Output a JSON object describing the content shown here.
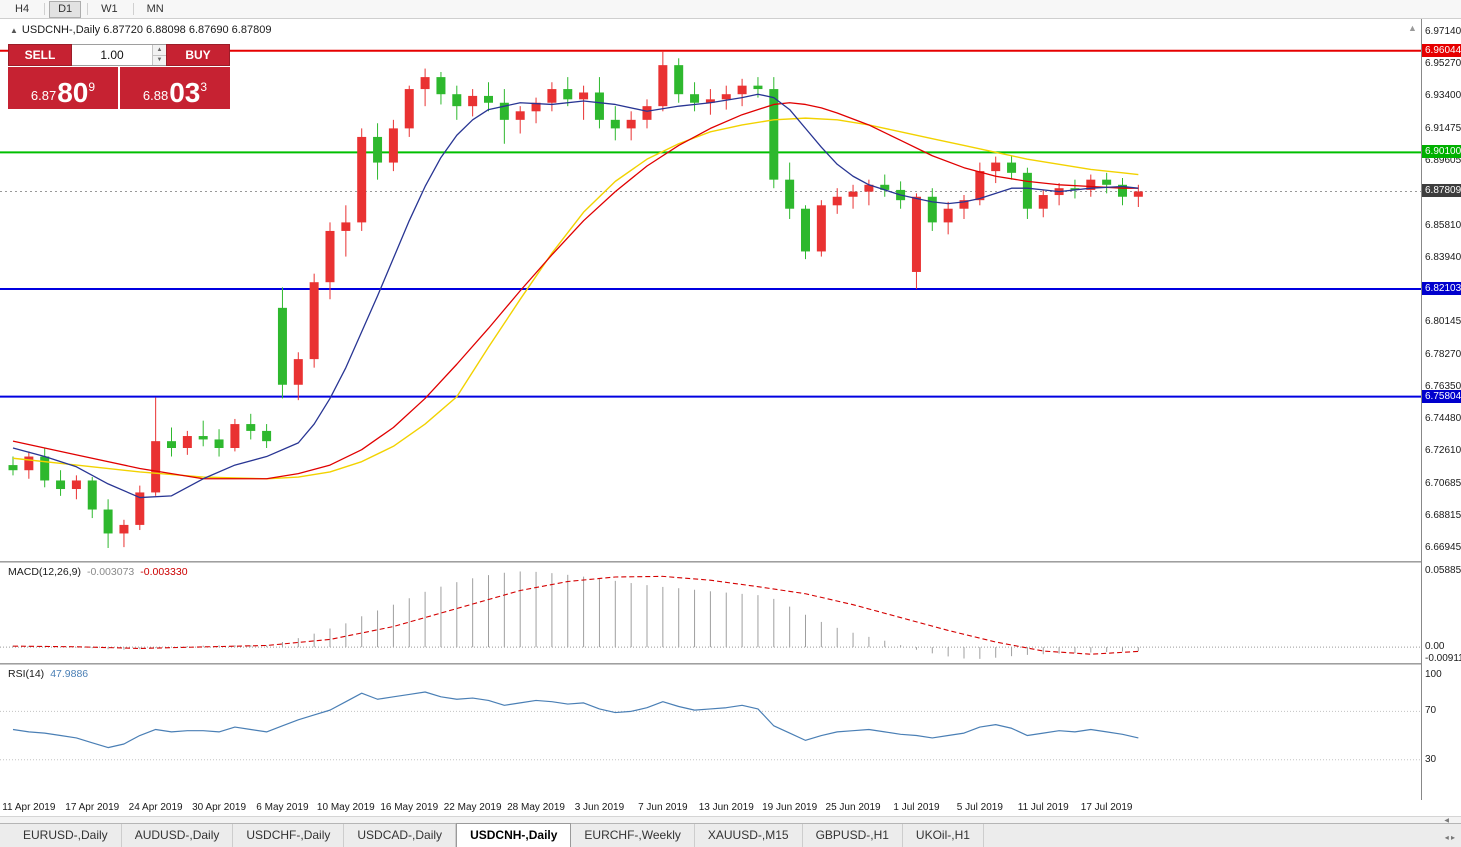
{
  "colors": {
    "candle_up": "#e93232",
    "candle_down": "#2eb82e",
    "ma_blue": "#283593",
    "ma_red": "#e00000",
    "ma_yellow": "#f2d200",
    "level_red": "#e60000",
    "level_green": "#00bf00",
    "level_blue": "#0000e0",
    "current_box": "#3d3d3d",
    "macd_hist": "#9f9f9f",
    "macd_signal": "#d40000",
    "rsi_line": "#4a7fb5",
    "trade_red": "#c62232"
  },
  "toolbar": {
    "timeframes": [
      "H4",
      "D1",
      "W1",
      "MN"
    ],
    "active": "D1"
  },
  "chart": {
    "title_symbol": "USDCNH-,Daily",
    "title_quote": "6.87720 6.88098 6.87690 6.87809",
    "collapse_icon": "▲",
    "shift_marker": "▲"
  },
  "trade": {
    "sell": "SELL",
    "buy": "BUY",
    "volume": "1.00",
    "bid_prefix": "6.87",
    "bid_big": "80",
    "bid_sup": "9",
    "ask_prefix": "6.88",
    "ask_big": "03",
    "ask_sup": "3"
  },
  "price_axis": {
    "ticks": [
      {
        "p": 6.9714,
        "t": "6.97140"
      },
      {
        "p": 6.9527,
        "t": "6.95270"
      },
      {
        "p": 6.934,
        "t": "6.93400"
      },
      {
        "p": 6.91475,
        "t": "6.91475"
      },
      {
        "p": 6.89605,
        "t": "6.89605"
      },
      {
        "p": 6.8581,
        "t": "6.85810"
      },
      {
        "p": 6.8394,
        "t": "6.83940"
      },
      {
        "p": 6.80145,
        "t": "6.80145"
      },
      {
        "p": 6.7827,
        "t": "6.78270"
      },
      {
        "p": 6.7635,
        "t": "6.76350"
      },
      {
        "p": 6.7448,
        "t": "6.74480"
      },
      {
        "p": 6.7261,
        "t": "6.72610"
      },
      {
        "p": 6.70685,
        "t": "6.70685"
      },
      {
        "p": 6.68815,
        "t": "6.68815"
      },
      {
        "p": 6.66945,
        "t": "6.66945"
      }
    ],
    "boxes": [
      {
        "p": 6.96044,
        "t": "6.96044",
        "c": "#e60000"
      },
      {
        "p": 6.901,
        "t": "6.90100",
        "c": "#00b000"
      },
      {
        "p": 6.87809,
        "t": "6.87809",
        "c": "#3d3d3d"
      },
      {
        "p": 6.82103,
        "t": "6.82103",
        "c": "#0000cd"
      },
      {
        "p": 6.75804,
        "t": "6.75804",
        "c": "#0000cd"
      }
    ]
  },
  "chart_data": {
    "type": "candlestick",
    "symbol": "USDCNH",
    "timeframe": "Daily",
    "ylim": [
      6.6613,
      6.979
    ],
    "levels": [
      {
        "p": 6.96044,
        "color": "#e60000",
        "w": 2
      },
      {
        "p": 6.901,
        "color": "#00bf00",
        "w": 2
      },
      {
        "p": 6.82103,
        "color": "#0000e0",
        "w": 2
      },
      {
        "p": 6.75804,
        "color": "#0000e0",
        "w": 2
      }
    ],
    "current_price": 6.87809,
    "candles": [
      [
        6.718,
        6.723,
        6.712,
        6.715
      ],
      [
        6.715,
        6.726,
        6.71,
        6.723
      ],
      [
        6.723,
        6.728,
        6.705,
        6.709
      ],
      [
        6.709,
        6.715,
        6.7,
        6.704
      ],
      [
        6.704,
        6.712,
        6.698,
        6.709
      ],
      [
        6.709,
        6.711,
        6.687,
        6.692
      ],
      [
        6.692,
        6.698,
        6.6695,
        6.678
      ],
      [
        6.678,
        6.686,
        6.67,
        6.683
      ],
      [
        6.683,
        6.706,
        6.68,
        6.702
      ],
      [
        6.702,
        6.7575,
        6.7,
        6.732
      ],
      [
        6.732,
        6.74,
        6.723,
        6.728
      ],
      [
        6.728,
        6.738,
        6.724,
        6.735
      ],
      [
        6.735,
        6.744,
        6.729,
        6.733
      ],
      [
        6.733,
        6.739,
        6.723,
        6.728
      ],
      [
        6.728,
        6.745,
        6.726,
        6.742
      ],
      [
        6.742,
        6.748,
        6.733,
        6.738
      ],
      [
        6.738,
        6.742,
        6.728,
        6.732
      ],
      [
        6.81,
        6.822,
        6.757,
        6.765
      ],
      [
        6.765,
        6.784,
        6.756,
        6.78
      ],
      [
        6.78,
        6.83,
        6.775,
        6.825
      ],
      [
        6.825,
        6.86,
        6.815,
        6.855
      ],
      [
        6.855,
        6.87,
        6.84,
        6.86
      ],
      [
        6.86,
        6.915,
        6.855,
        6.91
      ],
      [
        6.91,
        6.918,
        6.885,
        6.895
      ],
      [
        6.895,
        6.92,
        6.89,
        6.915
      ],
      [
        6.915,
        6.94,
        6.91,
        6.938
      ],
      [
        6.938,
        6.95,
        6.928,
        6.945
      ],
      [
        6.945,
        6.948,
        6.929,
        6.935
      ],
      [
        6.935,
        6.94,
        6.92,
        6.928
      ],
      [
        6.928,
        6.938,
        6.922,
        6.934
      ],
      [
        6.934,
        6.942,
        6.925,
        6.93
      ],
      [
        6.93,
        6.938,
        6.906,
        6.92
      ],
      [
        6.92,
        6.928,
        6.912,
        6.925
      ],
      [
        6.925,
        6.933,
        6.918,
        6.93
      ],
      [
        6.93,
        6.942,
        6.925,
        6.938
      ],
      [
        6.938,
        6.945,
        6.928,
        6.932
      ],
      [
        6.932,
        6.94,
        6.92,
        6.936
      ],
      [
        6.936,
        6.945,
        6.915,
        6.92
      ],
      [
        6.92,
        6.928,
        6.908,
        6.915
      ],
      [
        6.915,
        6.925,
        6.908,
        6.92
      ],
      [
        6.92,
        6.932,
        6.915,
        6.928
      ],
      [
        6.928,
        6.9604,
        6.925,
        6.952
      ],
      [
        6.952,
        6.956,
        6.93,
        6.935
      ],
      [
        6.935,
        6.942,
        6.925,
        6.93
      ],
      [
        6.93,
        6.938,
        6.923,
        6.932
      ],
      [
        6.932,
        6.94,
        6.926,
        6.935
      ],
      [
        6.935,
        6.944,
        6.928,
        6.94
      ],
      [
        6.94,
        6.945,
        6.933,
        6.938
      ],
      [
        6.938,
        6.945,
        6.88,
        6.885
      ],
      [
        6.885,
        6.895,
        6.862,
        6.868
      ],
      [
        6.868,
        6.87,
        6.8385,
        6.843
      ],
      [
        6.843,
        6.873,
        6.84,
        6.87
      ],
      [
        6.87,
        6.88,
        6.865,
        6.875
      ],
      [
        6.875,
        6.882,
        6.868,
        6.878
      ],
      [
        6.878,
        6.885,
        6.87,
        6.882
      ],
      [
        6.882,
        6.888,
        6.875,
        6.879
      ],
      [
        6.879,
        6.884,
        6.868,
        6.873
      ],
      [
        6.831,
        6.877,
        6.821,
        6.875
      ],
      [
        6.875,
        6.88,
        6.855,
        6.86
      ],
      [
        6.86,
        6.872,
        6.853,
        6.868
      ],
      [
        6.868,
        6.876,
        6.862,
        6.873
      ],
      [
        6.873,
        6.895,
        6.87,
        6.89
      ],
      [
        6.89,
        6.8985,
        6.883,
        6.895
      ],
      [
        6.895,
        6.899,
        6.885,
        6.889
      ],
      [
        6.889,
        6.892,
        6.862,
        6.868
      ],
      [
        6.868,
        6.879,
        6.863,
        6.876
      ],
      [
        6.876,
        6.883,
        6.87,
        6.88
      ],
      [
        6.88,
        6.885,
        6.874,
        6.879
      ],
      [
        6.879,
        6.888,
        6.875,
        6.885
      ],
      [
        6.885,
        6.889,
        6.877,
        6.882
      ],
      [
        6.882,
        6.886,
        6.87,
        6.875
      ],
      [
        6.875,
        6.882,
        6.869,
        6.8781
      ]
    ],
    "ma": {
      "blue": [
        [
          0,
          6.728
        ],
        [
          2,
          6.723
        ],
        [
          4,
          6.717
        ],
        [
          6,
          6.707
        ],
        [
          8,
          6.699
        ],
        [
          10,
          6.7
        ],
        [
          12,
          6.71
        ],
        [
          14,
          6.718
        ],
        [
          16,
          6.723
        ],
        [
          18,
          6.731
        ],
        [
          19,
          6.742
        ],
        [
          20,
          6.757
        ],
        [
          21,
          6.775
        ],
        [
          22,
          6.796
        ],
        [
          23,
          6.817
        ],
        [
          24,
          6.839
        ],
        [
          25,
          6.861
        ],
        [
          26,
          6.881
        ],
        [
          27,
          6.898
        ],
        [
          28,
          6.911
        ],
        [
          29,
          6.92
        ],
        [
          30,
          6.926
        ],
        [
          32,
          6.93
        ],
        [
          34,
          6.929
        ],
        [
          36,
          6.931
        ],
        [
          38,
          6.929
        ],
        [
          40,
          6.925
        ],
        [
          42,
          6.928
        ],
        [
          44,
          6.93
        ],
        [
          46,
          6.933
        ],
        [
          47,
          6.935
        ],
        [
          48,
          6.933
        ],
        [
          49,
          6.926
        ],
        [
          50,
          6.915
        ],
        [
          51,
          6.904
        ],
        [
          52,
          6.894
        ],
        [
          53,
          6.887
        ],
        [
          54,
          6.882
        ],
        [
          55,
          6.879
        ],
        [
          56,
          6.876
        ],
        [
          57,
          6.874
        ],
        [
          58,
          6.872
        ],
        [
          59,
          6.871
        ],
        [
          60,
          6.872
        ],
        [
          61,
          6.874
        ],
        [
          62,
          6.877
        ],
        [
          63,
          6.88
        ],
        [
          64,
          6.88
        ],
        [
          65,
          6.879
        ],
        [
          66,
          6.878
        ],
        [
          68,
          6.88
        ],
        [
          70,
          6.881
        ],
        [
          71,
          6.88
        ]
      ],
      "red": [
        [
          0,
          6.732
        ],
        [
          4,
          6.724
        ],
        [
          8,
          6.716
        ],
        [
          12,
          6.71
        ],
        [
          16,
          6.71
        ],
        [
          18,
          6.713
        ],
        [
          20,
          6.718
        ],
        [
          22,
          6.727
        ],
        [
          24,
          6.74
        ],
        [
          26,
          6.757
        ],
        [
          28,
          6.777
        ],
        [
          30,
          6.798
        ],
        [
          32,
          6.82
        ],
        [
          34,
          6.841
        ],
        [
          36,
          6.861
        ],
        [
          38,
          6.878
        ],
        [
          40,
          6.893
        ],
        [
          42,
          6.905
        ],
        [
          44,
          6.915
        ],
        [
          46,
          6.923
        ],
        [
          48,
          6.929
        ],
        [
          49,
          6.93
        ],
        [
          50,
          6.929
        ],
        [
          51,
          6.927
        ],
        [
          52,
          6.924
        ],
        [
          54,
          6.917
        ],
        [
          56,
          6.908
        ],
        [
          58,
          6.899
        ],
        [
          60,
          6.892
        ],
        [
          62,
          6.887
        ],
        [
          64,
          6.884
        ],
        [
          66,
          6.882
        ],
        [
          68,
          6.881
        ],
        [
          70,
          6.88
        ],
        [
          71,
          6.88
        ]
      ],
      "yellow": [
        [
          0,
          6.722
        ],
        [
          4,
          6.718
        ],
        [
          8,
          6.714
        ],
        [
          12,
          6.711
        ],
        [
          16,
          6.71
        ],
        [
          18,
          6.711
        ],
        [
          20,
          6.714
        ],
        [
          22,
          6.72
        ],
        [
          24,
          6.729
        ],
        [
          26,
          6.742
        ],
        [
          28,
          6.758
        ],
        [
          30,
          6.787
        ],
        [
          32,
          6.815
        ],
        [
          34,
          6.842
        ],
        [
          36,
          6.866
        ],
        [
          38,
          6.884
        ],
        [
          40,
          6.897
        ],
        [
          42,
          6.906
        ],
        [
          44,
          6.913
        ],
        [
          46,
          6.917
        ],
        [
          48,
          6.92
        ],
        [
          50,
          6.921
        ],
        [
          52,
          6.92
        ],
        [
          54,
          6.917
        ],
        [
          56,
          6.913
        ],
        [
          58,
          6.909
        ],
        [
          60,
          6.905
        ],
        [
          62,
          6.901
        ],
        [
          64,
          6.897
        ],
        [
          66,
          6.894
        ],
        [
          68,
          6.891
        ],
        [
          70,
          6.889
        ],
        [
          71,
          6.888
        ]
      ]
    },
    "x_labels": [
      {
        "i": 1,
        "t": "11 Apr 2019"
      },
      {
        "i": 5,
        "t": "17 Apr 2019"
      },
      {
        "i": 9,
        "t": "24 Apr 2019"
      },
      {
        "i": 13,
        "t": "30 Apr 2019"
      },
      {
        "i": 17,
        "t": "6 May 2019"
      },
      {
        "i": 21,
        "t": "10 May 2019"
      },
      {
        "i": 25,
        "t": "16 May 2019"
      },
      {
        "i": 29,
        "t": "22 May 2019"
      },
      {
        "i": 33,
        "t": "28 May 2019"
      },
      {
        "i": 37,
        "t": "3 Jun 2019"
      },
      {
        "i": 41,
        "t": "7 Jun 2019"
      },
      {
        "i": 45,
        "t": "13 Jun 2019"
      },
      {
        "i": 49,
        "t": "19 Jun 2019"
      },
      {
        "i": 53,
        "t": "25 Jun 2019"
      },
      {
        "i": 57,
        "t": "1 Jul 2019"
      },
      {
        "i": 61,
        "t": "5 Jul 2019"
      },
      {
        "i": 65,
        "t": "11 Jul 2019"
      },
      {
        "i": 69,
        "t": "17 Jul 2019"
      }
    ]
  },
  "macd": {
    "name": "MACD(12,26,9)",
    "main": "-0.003073",
    "signal_value": "-0.003330",
    "ylim": [
      -0.01231,
      0.06538
    ],
    "axis": [
      {
        "v": 0.058851,
        "t": "0.058851"
      },
      {
        "v": 0.0,
        "t": "0.00"
      },
      {
        "v": -0.009116,
        "t": "-0.009116"
      }
    ],
    "hist": [
      0.0012,
      0.001,
      0.0006,
      0.0002,
      -0.0002,
      -0.0008,
      -0.0016,
      -0.002,
      -0.0016,
      -0.0008,
      0.0002,
      0.0008,
      0.0012,
      0.0014,
      0.0016,
      0.0016,
      0.0014,
      0.004,
      0.007,
      0.0105,
      0.0145,
      0.0185,
      0.024,
      0.0285,
      0.033,
      0.038,
      0.043,
      0.047,
      0.0505,
      0.0535,
      0.056,
      0.0578,
      0.0588,
      0.0585,
      0.0575,
      0.0562,
      0.0548,
      0.0532,
      0.0515,
      0.0498,
      0.0482,
      0.0468,
      0.0458,
      0.0446,
      0.0434,
      0.0424,
      0.0414,
      0.0404,
      0.0375,
      0.0315,
      0.0252,
      0.0196,
      0.015,
      0.0112,
      0.008,
      0.005,
      0.0015,
      -0.002,
      -0.0048,
      -0.0072,
      -0.0088,
      -0.0091,
      -0.0082,
      -0.007,
      -0.006,
      -0.0055,
      -0.005,
      -0.0046,
      -0.0042,
      -0.0038,
      -0.0034,
      -0.0031
    ],
    "signal": [
      [
        0,
        0.0008
      ],
      [
        4,
        0.0003
      ],
      [
        8,
        -0.001
      ],
      [
        12,
        0.0002
      ],
      [
        16,
        0.0013
      ],
      [
        20,
        0.006
      ],
      [
        24,
        0.016
      ],
      [
        28,
        0.03
      ],
      [
        32,
        0.044
      ],
      [
        35,
        0.051
      ],
      [
        38,
        0.0545
      ],
      [
        41,
        0.055
      ],
      [
        44,
        0.052
      ],
      [
        47,
        0.047
      ],
      [
        50,
        0.0415
      ],
      [
        53,
        0.033
      ],
      [
        56,
        0.023
      ],
      [
        59,
        0.013
      ],
      [
        62,
        0.004
      ],
      [
        65,
        -0.003
      ],
      [
        68,
        -0.0055
      ],
      [
        71,
        -0.0033
      ]
    ]
  },
  "rsi": {
    "name": "RSI(14)",
    "value": "47.9886",
    "ylim": [
      -3.33,
      108.33
    ],
    "axis": [
      {
        "v": 100,
        "t": "100"
      },
      {
        "v": 70,
        "t": "70"
      },
      {
        "v": 30,
        "t": "30"
      }
    ],
    "levels": [
      70,
      30
    ],
    "points": [
      55,
      53,
      52,
      50,
      48,
      44,
      40,
      43,
      50,
      55,
      53,
      54,
      54,
      53,
      57,
      55,
      53,
      58,
      63,
      67,
      71,
      78,
      85,
      80,
      82,
      84,
      86,
      82,
      80,
      81,
      79,
      75,
      77,
      79,
      78,
      76,
      77,
      72,
      69,
      70,
      73,
      78,
      74,
      71,
      72,
      73,
      75,
      72,
      58,
      52,
      46,
      50,
      53,
      54,
      55,
      53,
      51,
      50,
      48,
      50,
      52,
      57,
      59,
      56,
      50,
      52,
      54,
      53,
      55,
      53,
      51,
      48
    ]
  },
  "scroll": {
    "arrow": "◀"
  },
  "tabs": {
    "items": [
      {
        "label": "EURUSD-,Daily",
        "active": false
      },
      {
        "label": "AUDUSD-,Daily",
        "active": false
      },
      {
        "label": "USDCHF-,Daily",
        "active": false
      },
      {
        "label": "USDCAD-,Daily",
        "active": false
      },
      {
        "label": "USDCNH-,Daily",
        "active": true
      },
      {
        "label": "EURCHF-,Weekly",
        "active": false
      },
      {
        "label": "XAUUSD-,M15",
        "active": false
      },
      {
        "label": "GBPUSD-,H1",
        "active": false
      },
      {
        "label": "UKOil-,H1",
        "active": false
      }
    ],
    "scroll_left": "◂",
    "scroll_right": "▸"
  }
}
